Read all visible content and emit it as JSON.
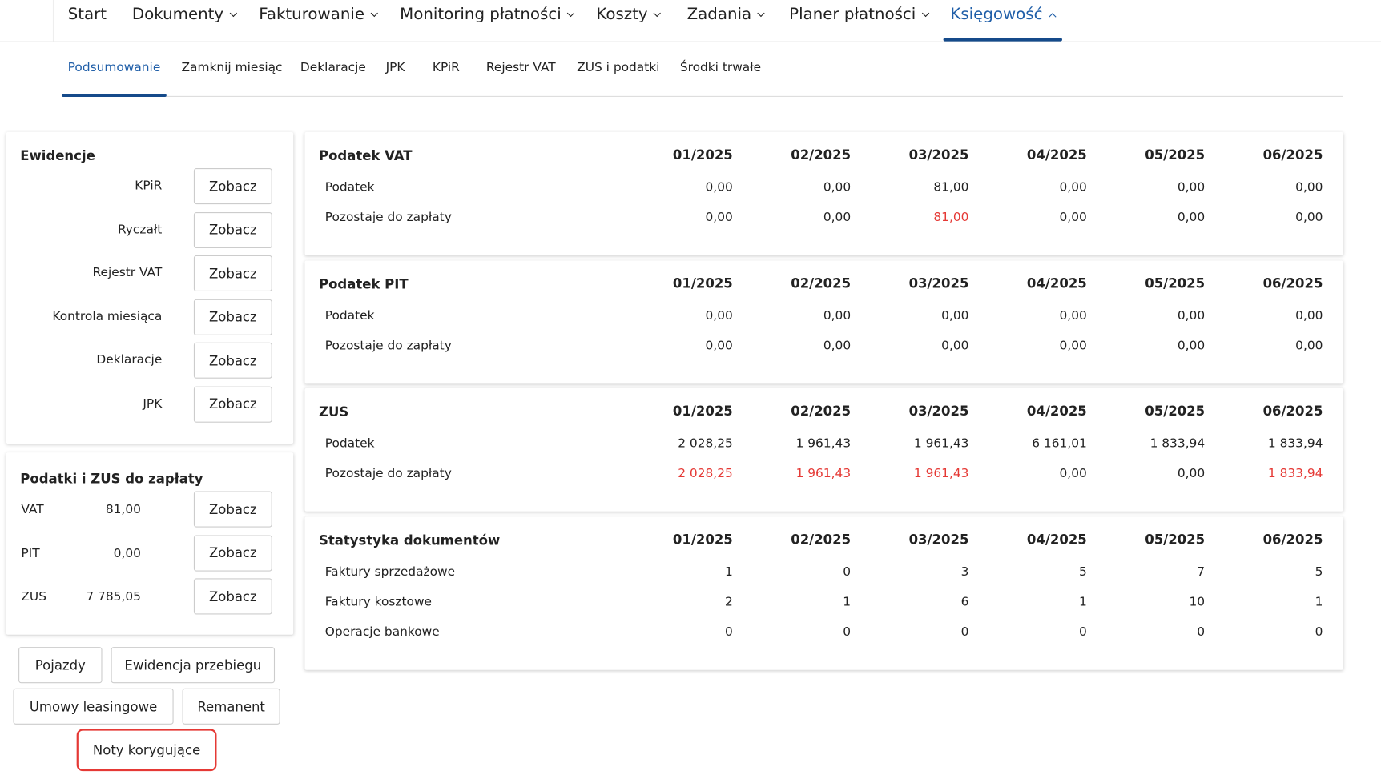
{
  "nav": {
    "items": [
      "Start",
      "Dokumenty",
      "Fakturowanie",
      "Monitoring płatności",
      "Koszty",
      "Zadania",
      "Planer płatności",
      "Księgowość"
    ],
    "active": 7,
    "dropdown": [
      false,
      true,
      true,
      true,
      true,
      true,
      true,
      true
    ]
  },
  "subnav": {
    "items": [
      "Podsumowanie",
      "Zamknij miesiąc",
      "Deklaracje",
      "JPK",
      "KPiR",
      "Rejestr VAT",
      "ZUS i podatki",
      "Środki trwałe"
    ],
    "active": 0
  },
  "ewidencje": {
    "title": "Ewidencje",
    "rows": [
      {
        "label": "KPiR",
        "button": "Zobacz"
      },
      {
        "label": "Ryczałt",
        "button": "Zobacz"
      },
      {
        "label": "Rejestr VAT",
        "button": "Zobacz"
      },
      {
        "label": "Kontrola miesiąca",
        "button": "Zobacz"
      },
      {
        "label": "Deklaracje",
        "button": "Zobacz"
      },
      {
        "label": "JPK",
        "button": "Zobacz"
      }
    ]
  },
  "podatki": {
    "title": "Podatki i ZUS do zapłaty",
    "rows": [
      {
        "label": "VAT",
        "value": "81,00",
        "button": "Zobacz"
      },
      {
        "label": "PIT",
        "value": "0,00",
        "button": "Zobacz"
      },
      {
        "label": "ZUS",
        "value": "7 785,05",
        "button": "Zobacz"
      }
    ]
  },
  "buttons": [
    [
      "Pojazdy",
      "Ewidencja przebiegu"
    ],
    [
      "Umowy leasingowe",
      "Remanent"
    ],
    [
      "Noty korygujące"
    ]
  ],
  "highlighted_button": "Noty korygujące",
  "alert_color": "#e53935",
  "tables": [
    {
      "title": "Podatek VAT",
      "columns": [
        "01/2025",
        "02/2025",
        "03/2025",
        "04/2025",
        "05/2025",
        "06/2025"
      ],
      "rows": [
        {
          "name": "Podatek",
          "values": [
            "0,00",
            "0,00",
            "81,00",
            "0,00",
            "0,00",
            "0,00"
          ]
        },
        {
          "name": "Pozostaje do zapłaty",
          "alert": true,
          "values": [
            "0,00",
            "0,00",
            "81,00",
            "0,00",
            "0,00",
            "0,00"
          ]
        }
      ]
    },
    {
      "title": "Podatek PIT",
      "columns": [
        "01/2025",
        "02/2025",
        "03/2025",
        "04/2025",
        "05/2025",
        "06/2025"
      ],
      "rows": [
        {
          "name": "Podatek",
          "values": [
            "0,00",
            "0,00",
            "0,00",
            "0,00",
            "0,00",
            "0,00"
          ]
        },
        {
          "name": "Pozostaje do zapłaty",
          "alert": true,
          "values": [
            "0,00",
            "0,00",
            "0,00",
            "0,00",
            "0,00",
            "0,00"
          ]
        }
      ]
    },
    {
      "title": "ZUS",
      "columns": [
        "01/2025",
        "02/2025",
        "03/2025",
        "04/2025",
        "05/2025",
        "06/2025"
      ],
      "rows": [
        {
          "name": "Podatek",
          "values": [
            "2 028,25",
            "1 961,43",
            "1 961,43",
            "6 161,01",
            "1 833,94",
            "1 833,94"
          ]
        },
        {
          "name": "Pozostaje do zapłaty",
          "alert": true,
          "values": [
            "2 028,25",
            "1 961,43",
            "1 961,43",
            "0,00",
            "0,00",
            "1 833,94"
          ]
        }
      ]
    },
    {
      "title": "Statystyka dokumentów",
      "columns": [
        "01/2025",
        "02/2025",
        "03/2025",
        "04/2025",
        "05/2025",
        "06/2025"
      ],
      "rows": [
        {
          "name": "Faktury sprzedażowe",
          "values": [
            "1",
            "0",
            "3",
            "5",
            "7",
            "5"
          ]
        },
        {
          "name": "Faktury kosztowe",
          "values": [
            "2",
            "1",
            "6",
            "1",
            "10",
            "1"
          ]
        },
        {
          "name": "Operacje bankowe",
          "values": [
            "0",
            "0",
            "0",
            "0",
            "0",
            "0"
          ]
        }
      ]
    }
  ]
}
